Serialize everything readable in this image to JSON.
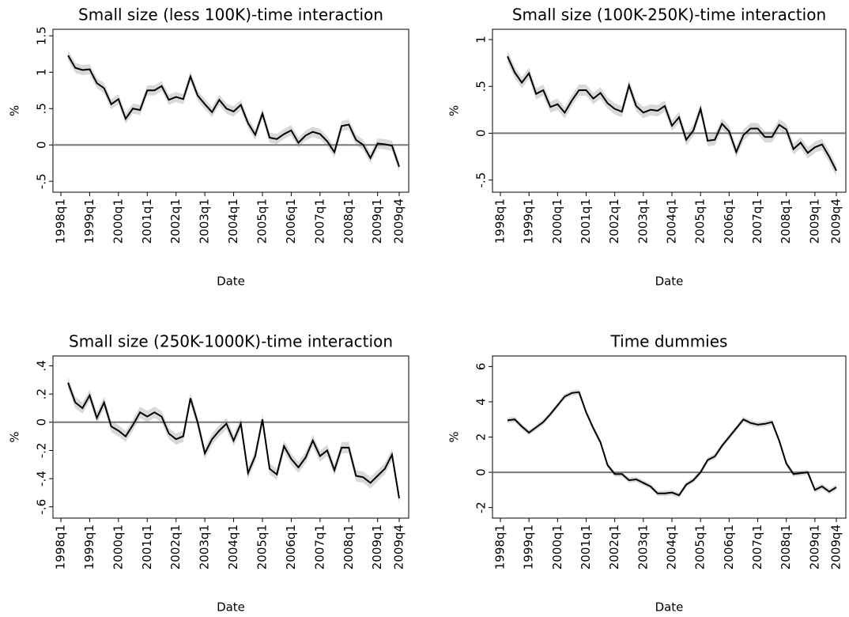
{
  "chart_data": [
    {
      "type": "line",
      "title": "Small size (less 100K)-time interaction",
      "xlabel": "Date",
      "ylabel": "%",
      "categories": [
        "1998q1",
        null,
        null,
        null,
        "1999q1",
        null,
        null,
        null,
        "2000q1",
        null,
        null,
        null,
        "2001q1",
        null,
        null,
        null,
        "2002q1",
        null,
        null,
        null,
        "2003q1",
        null,
        null,
        null,
        "2004q1",
        null,
        null,
        null,
        "2005q1",
        null,
        null,
        null,
        "2006q1",
        null,
        null,
        null,
        "2007q1",
        null,
        null,
        null,
        "2008q1",
        null,
        null,
        null,
        "2009q1",
        null,
        null,
        "2009q4"
      ],
      "values": [
        null,
        1.23,
        1.06,
        1.03,
        1.04,
        0.85,
        0.78,
        0.56,
        0.63,
        0.36,
        0.5,
        0.48,
        0.75,
        0.75,
        0.81,
        0.62,
        0.66,
        0.63,
        0.94,
        0.68,
        0.56,
        0.45,
        0.62,
        0.5,
        0.46,
        0.55,
        0.3,
        0.14,
        0.43,
        0.1,
        0.08,
        0.15,
        0.2,
        0.03,
        0.13,
        0.18,
        0.15,
        0.05,
        -0.1,
        0.26,
        0.28,
        0.07,
        0,
        -0.18,
        0.02,
        0.01,
        -0.01,
        -0.3
      ],
      "band_halfwidth": 0.07,
      "color": "#000000",
      "band_color": "#d9d9d9",
      "ylim": [
        -0.65,
        1.59
      ],
      "yticks": [
        {
          "value": -0.5,
          "label": "-.5"
        },
        0,
        {
          "value": 0.5,
          "label": ".5"
        },
        1,
        {
          "value": 1.5,
          "label": "1.5"
        }
      ],
      "reference_line": 0
    },
    {
      "type": "line",
      "title": "Small size (100K-250K)-time interaction",
      "xlabel": "Date",
      "ylabel": "%",
      "categories": [
        "1998q1",
        null,
        null,
        null,
        "1999q1",
        null,
        null,
        null,
        "2000q1",
        null,
        null,
        null,
        "2001q1",
        null,
        null,
        null,
        "2002q1",
        null,
        null,
        null,
        "2003q1",
        null,
        null,
        null,
        "2004q1",
        null,
        null,
        null,
        "2005q1",
        null,
        null,
        null,
        "2006q1",
        null,
        null,
        null,
        "2007q1",
        null,
        null,
        null,
        "2008q1",
        null,
        null,
        null,
        "2009q1",
        null,
        null,
        "2009q4"
      ],
      "values": [
        null,
        0.82,
        0.65,
        0.54,
        0.64,
        0.42,
        0.46,
        0.28,
        0.31,
        0.22,
        0.35,
        0.46,
        0.46,
        0.37,
        0.43,
        0.32,
        0.26,
        0.23,
        0.51,
        0.29,
        0.22,
        0.25,
        0.24,
        0.29,
        0.08,
        0.17,
        -0.07,
        0.03,
        0.26,
        -0.08,
        -0.07,
        0.1,
        0.02,
        -0.2,
        -0.02,
        0.05,
        0.05,
        -0.04,
        -0.04,
        0.09,
        0.04,
        -0.17,
        -0.1,
        -0.21,
        -0.15,
        -0.12,
        -0.25,
        -0.4
      ],
      "band_halfwidth": 0.06,
      "color": "#000000",
      "band_color": "#d9d9d9",
      "ylim": [
        -0.63,
        1.11
      ],
      "yticks": [
        {
          "value": -0.5,
          "label": "-.5"
        },
        0,
        {
          "value": 0.5,
          "label": ".5"
        },
        1
      ],
      "reference_line": 0
    },
    {
      "type": "line",
      "title": "Small size (250K-1000K)-time interaction",
      "xlabel": "Date",
      "ylabel": "%",
      "categories": [
        "1998q1",
        null,
        null,
        null,
        "1999q1",
        null,
        null,
        null,
        "2000q1",
        null,
        null,
        null,
        "2001q1",
        null,
        null,
        null,
        "2002q1",
        null,
        null,
        null,
        "2003q1",
        null,
        null,
        null,
        "2004q1",
        null,
        null,
        null,
        "2005q1",
        null,
        null,
        null,
        "2006q1",
        null,
        null,
        null,
        "2007q1",
        null,
        null,
        null,
        "2008q1",
        null,
        null,
        null,
        "2009q1",
        null,
        null,
        "2009q4"
      ],
      "values": [
        null,
        0.28,
        0.14,
        0.1,
        0.19,
        0.03,
        0.14,
        -0.03,
        -0.06,
        -0.1,
        -0.02,
        0.07,
        0.04,
        0.07,
        0.04,
        -0.08,
        -0.12,
        -0.1,
        0.17,
        0,
        -0.22,
        -0.12,
        -0.06,
        -0.01,
        -0.13,
        -0.01,
        -0.36,
        -0.24,
        0.02,
        -0.33,
        -0.37,
        -0.17,
        -0.26,
        -0.32,
        -0.25,
        -0.13,
        -0.24,
        -0.2,
        -0.34,
        -0.18,
        -0.18,
        -0.38,
        -0.39,
        -0.43,
        -0.38,
        -0.33,
        -0.23,
        -0.54
      ],
      "band_halfwidth": 0.04,
      "color": "#000000",
      "band_color": "#d9d9d9",
      "ylim": [
        -0.68,
        0.47
      ],
      "yticks": [
        {
          "value": -0.6,
          "label": "-.6"
        },
        {
          "value": -0.4,
          "label": "-.4"
        },
        {
          "value": -0.2,
          "label": "-.2"
        },
        0,
        {
          "value": 0.2,
          "label": ".2"
        },
        {
          "value": 0.4,
          "label": ".4"
        }
      ],
      "reference_line": 0
    },
    {
      "type": "line",
      "title": "Time dummies",
      "xlabel": "Date",
      "ylabel": "%",
      "categories": [
        "1998q1",
        null,
        null,
        null,
        "1999q1",
        null,
        null,
        null,
        "2000q1",
        null,
        null,
        null,
        "2001q1",
        null,
        null,
        null,
        "2002q1",
        null,
        null,
        null,
        "2003q1",
        null,
        null,
        null,
        "2004q1",
        null,
        null,
        null,
        "2005q1",
        null,
        null,
        null,
        "2006q1",
        null,
        null,
        null,
        "2007q1",
        null,
        null,
        null,
        "2008q1",
        null,
        null,
        null,
        "2009q1",
        null,
        null,
        "2009q4"
      ],
      "values": [
        null,
        2.95,
        3.0,
        2.6,
        2.25,
        2.55,
        2.85,
        3.3,
        3.8,
        4.3,
        4.5,
        4.55,
        3.4,
        2.5,
        1.7,
        0.4,
        -0.1,
        -0.1,
        -0.45,
        -0.4,
        -0.6,
        -0.8,
        -1.2,
        -1.2,
        -1.15,
        -1.3,
        -0.7,
        -0.45,
        0,
        0.7,
        0.9,
        1.5,
        2.0,
        2.5,
        3.0,
        2.8,
        2.7,
        2.75,
        2.85,
        1.8,
        0.5,
        -0.1,
        -0.05,
        0,
        -1.0,
        -0.8,
        -1.1,
        -0.85
      ],
      "band_halfwidth": 0.15,
      "color": "#000000",
      "band_color": "#d9d9d9",
      "ylim": [
        -2.6,
        6.6
      ],
      "yticks": [
        -2,
        0,
        2,
        4,
        6
      ],
      "reference_line": 0
    }
  ]
}
